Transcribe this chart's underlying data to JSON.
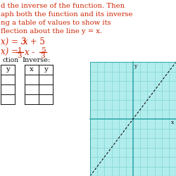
{
  "bg_color": "#ffffff",
  "grid_bg_color": "#b2eded",
  "grid_line_color": "#82d4d4",
  "grid_axis_color": "#3aabab",
  "text_color": "#cc2200",
  "black": "#111111",
  "title_lines": [
    "d the inverse of the function. Then",
    "aph both the function and its inverse",
    "ng a table of values to show its",
    "flection about the line y = x."
  ],
  "func_text": "x) = 3x + 5",
  "inv_pre": "x) =",
  "n_grid_cols": 12,
  "n_grid_rows": 12,
  "gx0": 128,
  "gx1": 250,
  "gy0": 88,
  "gy1": 250,
  "axis_col_rel": 0.5,
  "axis_row_rel": 0.5
}
